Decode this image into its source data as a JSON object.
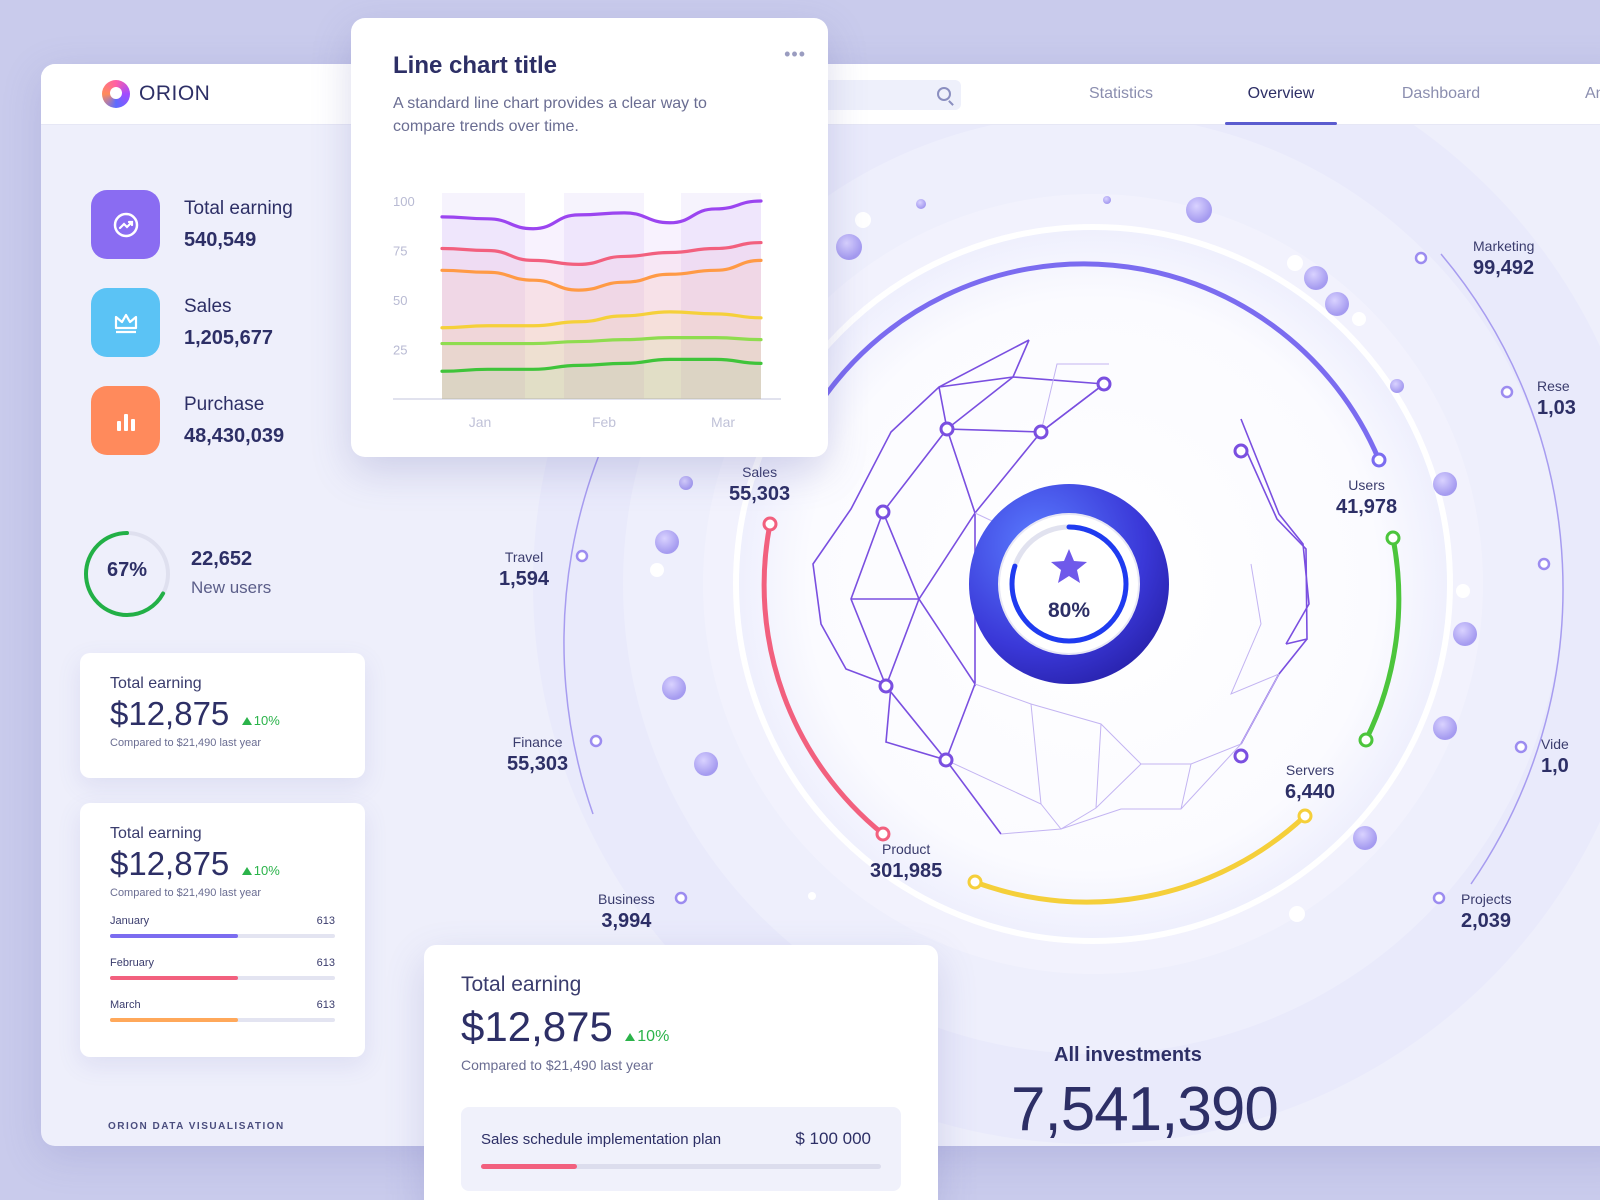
{
  "brand": {
    "name": "ORION",
    "footer": "ORION DATA VISUALISATION"
  },
  "nav": {
    "tabs": [
      "Statistics",
      "Overview",
      "Dashboard",
      "Anal"
    ],
    "active": "Overview"
  },
  "search": {
    "placeholder": ""
  },
  "stats": [
    {
      "title": "Total earning",
      "value": "540,549",
      "icon": "trend-icon",
      "color": "#8a6cf2"
    },
    {
      "title": "Sales",
      "value": "1,205,677",
      "icon": "crown-icon",
      "color": "#5bc3f5"
    },
    {
      "title": "Purchase",
      "value": "48,430,039",
      "icon": "bar-chart-icon",
      "color": "#ff8a5c"
    }
  ],
  "new_users": {
    "percent_label": "67%",
    "percent": 0.67,
    "value": "22,652",
    "label": "New users",
    "color": "#22b046"
  },
  "card1": {
    "title": "Total earning",
    "amount": "$12,875",
    "delta": "10%",
    "note": "Compared to $21,490 last year"
  },
  "card2": {
    "title": "Total earning",
    "amount": "$12,875",
    "delta": "10%",
    "note": "Compared to $21,490 last year",
    "bars": [
      {
        "label": "January",
        "value": "613",
        "fill": 0.57,
        "color": "#7b6cf0"
      },
      {
        "label": "February",
        "value": "613",
        "fill": 0.57,
        "color": "#f2607e"
      },
      {
        "label": "March",
        "value": "613",
        "fill": 0.57,
        "color": "#ffa85a"
      }
    ]
  },
  "line_chart": {
    "title": "Line chart title",
    "subtitle": "A standard line chart provides a clear way to compare trends over time.",
    "more_icon": "more-dots-icon"
  },
  "chart_data": {
    "type": "line",
    "title": "Line chart title",
    "categories": [
      "Jan",
      "Feb",
      "Mar"
    ],
    "x": [
      0,
      1,
      2,
      3,
      4,
      5,
      6,
      7
    ],
    "ylim": [
      0,
      100
    ],
    "yticks": [
      "100",
      "75",
      "50",
      "25"
    ],
    "grid": false,
    "series": [
      {
        "color": "#9b45f0",
        "values": [
          92,
          91,
          86,
          93,
          94,
          89,
          96,
          100
        ]
      },
      {
        "color": "#f2607e",
        "values": [
          76,
          75,
          70,
          68,
          72,
          74,
          76,
          79
        ]
      },
      {
        "color": "#ff9a45",
        "values": [
          65,
          64,
          60,
          55,
          59,
          63,
          65,
          70
        ]
      },
      {
        "color": "#f5d03a",
        "values": [
          36,
          37,
          37,
          39,
          42,
          44,
          43,
          41
        ]
      },
      {
        "color": "#8fdc4f",
        "values": [
          28,
          28,
          28,
          29,
          30,
          31,
          31,
          30
        ]
      },
      {
        "color": "#3fc43a",
        "values": [
          14,
          15,
          15,
          17,
          18,
          20,
          20,
          18
        ]
      }
    ]
  },
  "center": {
    "percent_label": "80%",
    "percent": 0.8,
    "icon": "star-icon"
  },
  "orbit_labels": [
    {
      "key": "sales",
      "title": "Sales",
      "value": "55,303"
    },
    {
      "key": "users",
      "title": "Users",
      "value": "41,978"
    },
    {
      "key": "servers",
      "title": "Servers",
      "value": "6,440"
    },
    {
      "key": "product",
      "title": "Product",
      "value": "301,985"
    },
    {
      "key": "travel",
      "title": "Travel",
      "value": "1,594"
    },
    {
      "key": "finance",
      "title": "Finance",
      "value": "55,303"
    },
    {
      "key": "business",
      "title": "Business",
      "value": "3,994"
    },
    {
      "key": "marketing",
      "title": "Marketing",
      "value": "99,492"
    },
    {
      "key": "research",
      "title": "Rese",
      "value": "1,03"
    },
    {
      "key": "video",
      "title": "Vide",
      "value": "1,0"
    },
    {
      "key": "projects",
      "title": "Projects",
      "value": "2,039"
    }
  ],
  "colors": {
    "sales_arc": "#f2607e",
    "users_arc": "#7b6cf0",
    "servers_arc": "#4cc53c",
    "product_arc": "#f5cf3a"
  },
  "investments": {
    "title": "All investments",
    "value": "7,541,390"
  },
  "bottom_card": {
    "title": "Total earning",
    "amount": "$12,875",
    "delta": "10%",
    "note": "Compared to $21,490 last year",
    "plan": {
      "label": "Sales schedule implementation plan",
      "value": "$ 100 000",
      "fill": 0.24
    }
  }
}
